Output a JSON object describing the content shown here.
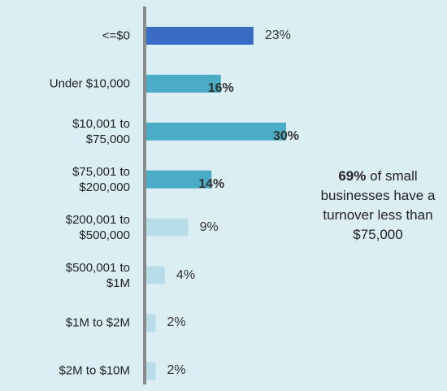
{
  "chart_data": {
    "type": "hbar",
    "categories": [
      "<=$0",
      "Under $10,000",
      "$10,001 to $75,000",
      "$75,001 to $200,000",
      "$200,001 to $500,000",
      "$500,001 to $1M",
      "$1M to $2M",
      "$2M to $10M"
    ],
    "values": [
      23,
      16,
      30,
      14,
      9,
      4,
      2,
      2
    ],
    "value_labels": [
      "23%",
      "16%",
      "30%",
      "14%",
      "9%",
      "4%",
      "2%",
      "2%"
    ],
    "colors": [
      "#3a6cc6",
      "#4bacc6",
      "#4bacc6",
      "#4bacc6",
      "#b8dde9",
      "#b8dde9",
      "#b8dde9",
      "#b8dde9"
    ],
    "value_label_bold": [
      false,
      true,
      true,
      true,
      false,
      false,
      false,
      false
    ],
    "xlim": [
      0,
      30
    ],
    "annotation": {
      "bold": "69%",
      "text": "of small businesses have a turnover less than $75,000"
    }
  }
}
